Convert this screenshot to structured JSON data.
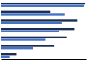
{
  "chart_data": {
    "type": "bar",
    "orientation": "horizontal",
    "categories": [
      null,
      null,
      null,
      null,
      null,
      null,
      null
    ],
    "series": [
      {
        "color": "#1a2e52",
        "values": [
          99,
          58,
          90,
          86,
          77,
          62,
          18
        ]
      },
      {
        "color": "#4472c4",
        "values": [
          97,
          75,
          71,
          68,
          52,
          38,
          10
        ]
      }
    ],
    "xlim": [
      0,
      100
    ],
    "tick_labels": false
  }
}
